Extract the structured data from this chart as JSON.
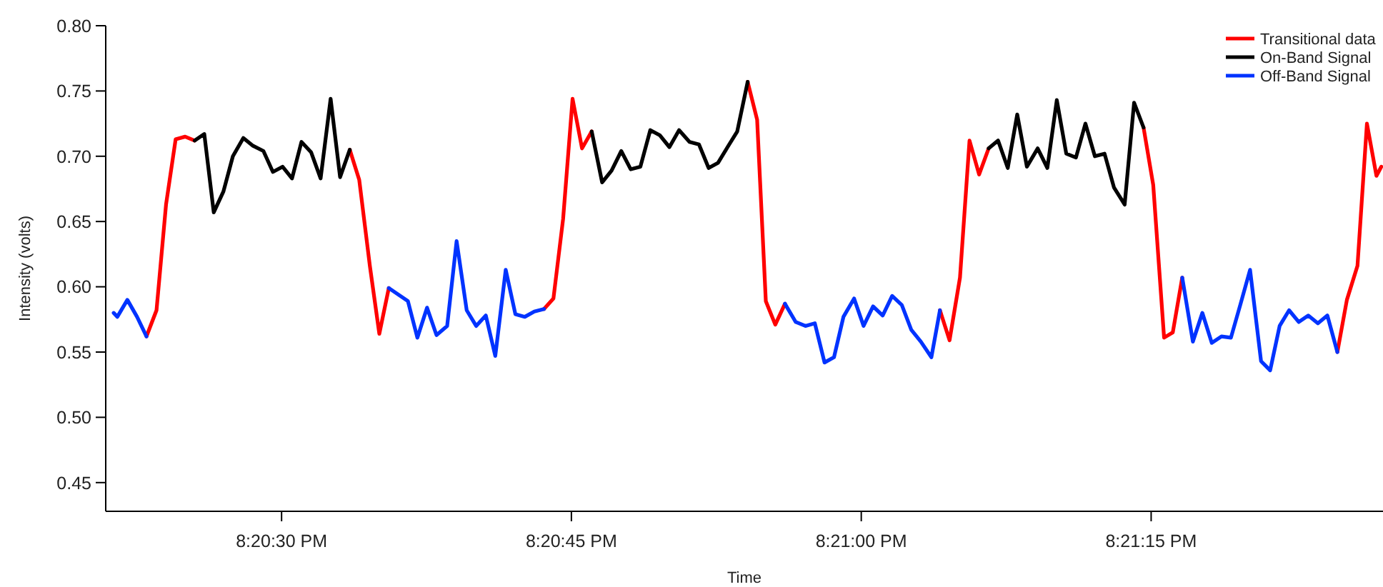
{
  "chart_data": {
    "type": "line",
    "xlabel": "Time",
    "ylabel": "Intensity (volts)",
    "legend": "top right",
    "xlim": [
      20.339139,
      20.3575
    ],
    "xticks": [
      {
        "value": 20.341667,
        "label": "8:20:30 PM"
      },
      {
        "value": 20.345833,
        "label": "8:20:45 PM"
      },
      {
        "value": 20.35,
        "label": "8:21:00 PM"
      },
      {
        "value": 20.354167,
        "label": "8:21:15 PM"
      }
    ],
    "ylim": [
      0.428,
      0.8
    ],
    "yticks": [
      {
        "value": 0.45,
        "label": "0.45"
      },
      {
        "value": 0.5,
        "label": "0.50"
      },
      {
        "value": 0.55,
        "label": "0.55"
      },
      {
        "value": 0.6,
        "label": "0.60"
      },
      {
        "value": 0.65,
        "label": "0.65"
      },
      {
        "value": 0.7,
        "label": "0.70"
      },
      {
        "value": 0.75,
        "label": "0.75"
      },
      {
        "value": 0.8,
        "label": "0.80"
      }
    ],
    "x": [
      20.339253,
      20.339306,
      20.33945,
      20.339589,
      20.339725,
      20.339869,
      20.340006,
      20.340144,
      20.340281,
      20.340417,
      20.340556,
      20.340692,
      20.340831,
      20.340967,
      20.341117,
      20.341256,
      20.341406,
      20.341542,
      20.341681,
      20.341817,
      20.341953,
      20.342092,
      20.342228,
      20.342372,
      20.342508,
      20.342647,
      20.342783,
      20.342936,
      20.343072,
      20.343208,
      20.343347,
      20.343483,
      20.343619,
      20.343758,
      20.343894,
      20.344047,
      20.344183,
      20.344328,
      20.344464,
      20.344603,
      20.344739,
      20.344889,
      20.345028,
      20.345164,
      20.3453,
      20.345439,
      20.345575,
      20.345714,
      20.34585,
      20.345986,
      20.346125,
      20.346275,
      20.346411,
      20.34655,
      20.346686,
      20.346825,
      20.346967,
      20.347106,
      20.347242,
      20.347381,
      20.347531,
      20.347667,
      20.347806,
      20.347942,
      20.348078,
      20.348217,
      20.348367,
      20.348503,
      20.348628,
      20.348764,
      20.348903,
      20.349058,
      20.349197,
      20.349333,
      20.349472,
      20.349608,
      20.349744,
      20.349897,
      20.350033,
      20.350169,
      20.350308,
      20.350444,
      20.350583,
      20.350719,
      20.350856,
      20.351008,
      20.351131,
      20.351269,
      20.351419,
      20.351556,
      20.351694,
      20.351831,
      20.351967,
      20.352106,
      20.352242,
      20.352381,
      20.352536,
      20.352675,
      20.352811,
      20.352947,
      20.353086,
      20.353222,
      20.353358,
      20.353497,
      20.353633,
      20.353786,
      20.353922,
      20.354058,
      20.354197,
      20.354353,
      20.354478,
      20.354614,
      20.354767,
      20.354903,
      20.355039,
      20.355178,
      20.355314,
      20.355453,
      20.355589,
      20.355747,
      20.355878,
      20.356014,
      20.35615,
      20.356289,
      20.356425,
      20.356564,
      20.3567,
      20.356844,
      20.356981,
      20.357133,
      20.357269,
      20.357406,
      20.357475
    ],
    "series": [
      {
        "name": "Transitional data",
        "color": "#ff0000",
        "values": [
          null,
          null,
          null,
          null,
          0.562,
          0.582,
          0.663,
          0.713,
          0.715,
          0.712,
          null,
          null,
          null,
          null,
          null,
          null,
          null,
          null,
          null,
          null,
          null,
          null,
          null,
          null,
          null,
          0.705,
          0.682,
          0.616,
          0.564,
          0.599,
          null,
          null,
          null,
          null,
          null,
          null,
          null,
          null,
          null,
          null,
          null,
          null,
          null,
          null,
          null,
          0.583,
          0.591,
          0.652,
          0.744,
          0.706,
          0.719,
          null,
          null,
          null,
          null,
          null,
          null,
          null,
          null,
          null,
          null,
          null,
          null,
          null,
          null,
          null,
          0.757,
          0.728,
          0.589,
          0.571,
          0.587,
          null,
          null,
          null,
          null,
          null,
          null,
          null,
          null,
          null,
          null,
          null,
          null,
          null,
          null,
          null,
          0.582,
          0.559,
          0.607,
          0.712,
          0.686,
          0.706,
          null,
          null,
          null,
          null,
          null,
          null,
          null,
          null,
          null,
          null,
          null,
          null,
          null,
          null,
          null,
          0.722,
          0.678,
          0.561,
          0.565,
          0.607,
          null,
          null,
          null,
          null,
          null,
          null,
          null,
          null,
          null,
          null,
          null,
          null,
          null,
          null,
          null,
          0.55,
          0.59,
          0.616,
          0.725,
          0.685,
          0.692
        ]
      },
      {
        "name": "On-Band Signal",
        "color": "#000000",
        "values": [
          null,
          null,
          null,
          null,
          null,
          null,
          null,
          null,
          null,
          0.712,
          0.717,
          0.657,
          0.673,
          0.7,
          0.714,
          0.708,
          0.704,
          0.688,
          0.692,
          0.683,
          0.711,
          0.703,
          0.683,
          0.744,
          0.684,
          0.705,
          null,
          null,
          null,
          null,
          null,
          null,
          null,
          null,
          null,
          null,
          null,
          null,
          null,
          null,
          null,
          null,
          null,
          null,
          null,
          null,
          null,
          null,
          null,
          null,
          0.719,
          0.68,
          0.689,
          0.704,
          0.69,
          0.692,
          0.72,
          0.716,
          0.707,
          0.72,
          0.711,
          0.709,
          0.691,
          0.695,
          0.707,
          0.719,
          0.757,
          null,
          null,
          null,
          null,
          null,
          null,
          null,
          null,
          null,
          null,
          null,
          null,
          null,
          null,
          null,
          null,
          null,
          null,
          null,
          null,
          null,
          null,
          null,
          null,
          0.706,
          0.712,
          0.691,
          0.732,
          0.692,
          0.706,
          0.691,
          0.743,
          0.702,
          0.699,
          0.725,
          0.7,
          0.702,
          0.676,
          0.663,
          0.741,
          0.722,
          null,
          null,
          null,
          null,
          null,
          null,
          null,
          null,
          null,
          null,
          null,
          null,
          null,
          null,
          null,
          null,
          null,
          null,
          null,
          null,
          null,
          null,
          null,
          null,
          null
        ]
      },
      {
        "name": "Off-Band Signal",
        "color": "#0033ff",
        "values": [
          0.58,
          0.577,
          0.59,
          0.577,
          0.562,
          null,
          null,
          null,
          null,
          null,
          null,
          null,
          null,
          null,
          null,
          null,
          null,
          null,
          null,
          null,
          null,
          null,
          null,
          null,
          null,
          null,
          null,
          null,
          null,
          0.599,
          0.594,
          0.589,
          0.561,
          0.584,
          0.563,
          0.57,
          0.635,
          0.582,
          0.57,
          0.578,
          0.547,
          0.613,
          0.579,
          0.577,
          0.581,
          0.583,
          null,
          null,
          null,
          null,
          null,
          null,
          null,
          null,
          null,
          null,
          null,
          null,
          null,
          null,
          null,
          null,
          null,
          null,
          null,
          null,
          null,
          null,
          null,
          null,
          0.587,
          0.573,
          0.57,
          0.572,
          0.542,
          0.546,
          0.577,
          0.591,
          0.57,
          0.585,
          0.578,
          0.593,
          0.586,
          0.567,
          0.558,
          0.546,
          0.582,
          null,
          null,
          null,
          null,
          null,
          null,
          null,
          null,
          null,
          null,
          null,
          null,
          null,
          null,
          null,
          null,
          null,
          null,
          null,
          null,
          null,
          null,
          null,
          null,
          0.607,
          0.558,
          0.58,
          0.557,
          0.562,
          0.561,
          0.587,
          0.613,
          0.543,
          0.536,
          0.57,
          0.582,
          0.573,
          0.578,
          0.572,
          0.578,
          0.55,
          null,
          null,
          null,
          null,
          null
        ]
      }
    ]
  }
}
